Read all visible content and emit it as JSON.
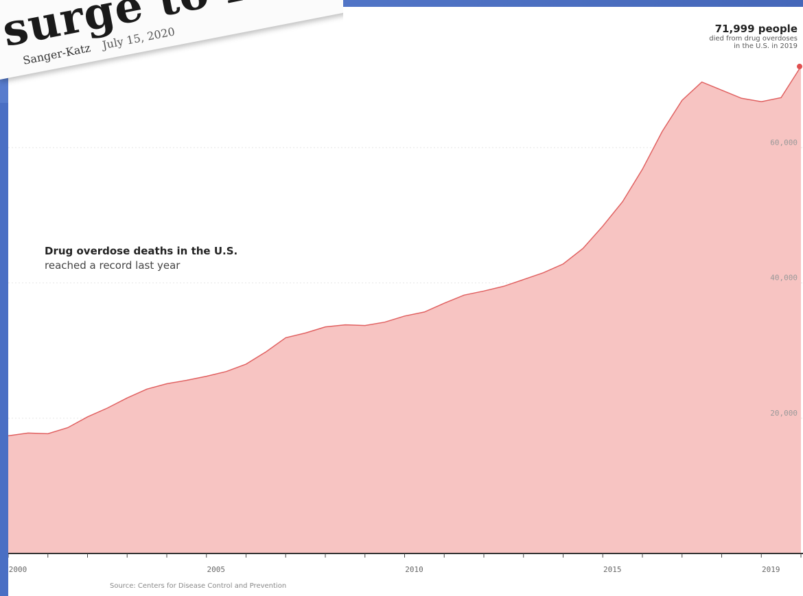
{
  "headline": {
    "text": "surge to r",
    "byline_author": "Sanger-Katz",
    "byline_date": "July 15, 2020"
  },
  "chart_data": {
    "type": "area",
    "title": "Drug overdose deaths in the U.S.",
    "subtitle": "reached a record last year",
    "callout": {
      "value": "71,999 people",
      "line1": "died from drug overdoses",
      "line2": "in the U.S. in 2019"
    },
    "source": "Source: Centers for Disease Control and Prevention",
    "x_ticks": [
      "2000",
      "2005",
      "2010",
      "2015",
      "2019"
    ],
    "y_ticks": [
      "20,000",
      "40,000",
      "60,000"
    ],
    "ylim": [
      0,
      80000
    ],
    "xlim": [
      2000.0,
      2020.0
    ],
    "x": [
      2000.0,
      2000.5,
      2001.0,
      2001.5,
      2002.0,
      2002.5,
      2003.0,
      2003.5,
      2004.0,
      2004.5,
      2005.0,
      2005.5,
      2006.0,
      2006.5,
      2007.0,
      2007.5,
      2008.0,
      2008.5,
      2009.0,
      2009.5,
      2010.0,
      2010.5,
      2011.0,
      2011.5,
      2012.0,
      2012.5,
      2013.0,
      2013.5,
      2014.0,
      2014.5,
      2015.0,
      2015.5,
      2016.0,
      2016.5,
      2017.0,
      2017.5,
      2018.0,
      2018.5,
      2019.0,
      2019.5,
      2020.0
    ],
    "values": [
      17400,
      17800,
      17700,
      18600,
      20200,
      21500,
      23000,
      24300,
      25100,
      25600,
      26200,
      26900,
      28000,
      29800,
      31900,
      32600,
      33500,
      33800,
      33700,
      34200,
      35100,
      35700,
      37000,
      38200,
      38800,
      39500,
      40500,
      41500,
      42800,
      45100,
      48400,
      52000,
      56800,
      62400,
      67000,
      69700,
      68500,
      67300,
      66800,
      67400,
      72000
    ],
    "series_color": "#f7c4c2",
    "line_color": "#e06060",
    "callout_dot_color": "#e05050"
  }
}
